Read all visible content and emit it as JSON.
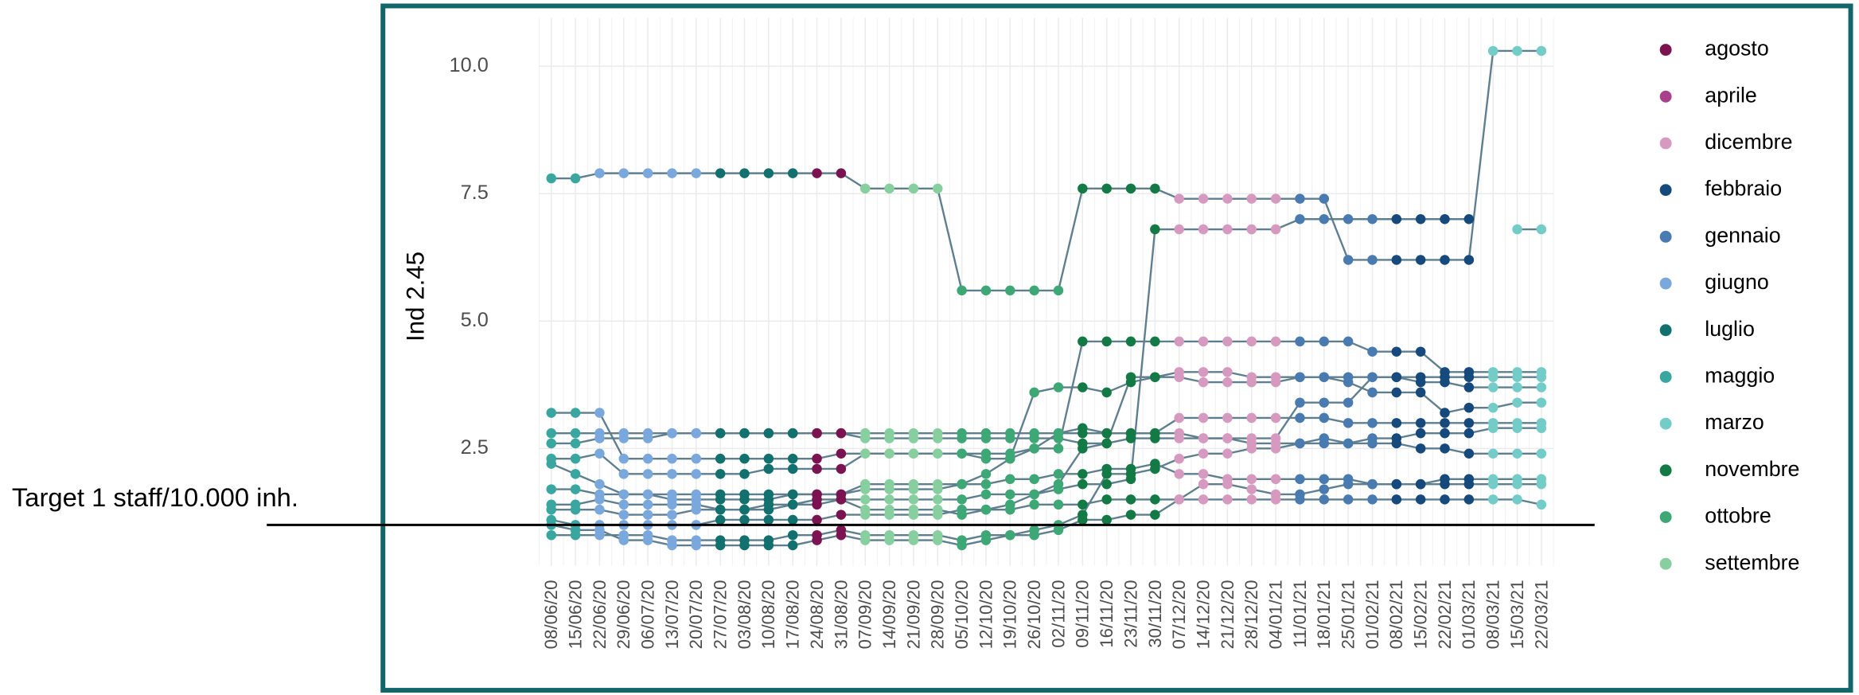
{
  "chart_data": {
    "type": "line",
    "y_label": "Ind 2.45",
    "ylim": [
      0.2,
      10.95
    ],
    "yticks": [
      2.5,
      {
        "value": 5.0,
        "label": "5.0"
      },
      7.5,
      {
        "value": 10.0,
        "label": "10.0"
      }
    ],
    "grid": true,
    "line_color": "#5f7f8f",
    "hline": {
      "value": 1.0,
      "label": "Target 1 staff/10.000 inh."
    },
    "x": [
      "08/06/20",
      "15/06/20",
      "22/06/20",
      "29/06/20",
      "06/07/20",
      "13/07/20",
      "20/07/20",
      "27/07/20",
      "03/08/20",
      "10/08/20",
      "17/08/20",
      "24/08/20",
      "31/08/20",
      "07/09/20",
      "14/09/20",
      "21/09/20",
      "28/09/20",
      "05/10/20",
      "12/10/20",
      "19/10/20",
      "26/10/20",
      "02/11/20",
      "09/11/20",
      "16/11/20",
      "23/11/20",
      "30/11/20",
      "07/12/20",
      "14/12/20",
      "21/12/20",
      "28/12/20",
      "04/01/21",
      "11/01/21",
      "18/01/21",
      "25/01/21",
      "01/02/21",
      "08/02/21",
      "15/02/21",
      "22/02/21",
      "01/03/21",
      "08/03/21",
      "15/03/21",
      "22/03/21"
    ],
    "legend": [
      {
        "name": "agosto",
        "color": "#7a1350"
      },
      {
        "name": "aprile",
        "color": "#a8418a"
      },
      {
        "name": "dicembre",
        "color": "#d69ac0"
      },
      {
        "name": "febbraio",
        "color": "#164a7c"
      },
      {
        "name": "gennaio",
        "color": "#4a7bb0"
      },
      {
        "name": "giugno",
        "color": "#7aa8dc"
      },
      {
        "name": "luglio",
        "color": "#12706e"
      },
      {
        "name": "maggio",
        "color": "#3aa6a0"
      },
      {
        "name": "marzo",
        "color": "#74ccc8"
      },
      {
        "name": "novembre",
        "color": "#137a45"
      },
      {
        "name": "ottobre",
        "color": "#3ea776"
      },
      {
        "name": "settembre",
        "color": "#88cfa0"
      }
    ],
    "x_month": [
      7,
      7,
      5,
      5,
      5,
      5,
      5,
      6,
      6,
      6,
      6,
      0,
      0,
      11,
      11,
      11,
      11,
      10,
      10,
      10,
      10,
      10,
      9,
      9,
      9,
      9,
      2,
      2,
      2,
      2,
      2,
      4,
      4,
      4,
      4,
      3,
      3,
      3,
      3,
      8,
      8,
      8
    ],
    "series": [
      {
        "values": [
          7.8,
          7.8,
          7.9,
          7.9,
          7.9,
          7.9,
          7.9,
          7.9,
          7.9,
          7.9,
          7.9,
          7.9,
          7.9,
          7.6,
          7.6,
          7.6,
          7.6,
          5.6,
          5.6,
          5.6,
          5.6,
          5.6,
          7.6,
          7.6,
          7.6,
          7.6,
          7.4,
          7.4,
          7.4,
          7.4,
          7.4,
          7.4,
          7.4,
          6.2,
          6.2,
          6.2,
          6.2,
          6.2,
          6.2,
          10.3,
          10.3,
          10.3
        ]
      },
      {
        "values": [
          1.3,
          1.3,
          1.3,
          1.2,
          1.2,
          1.2,
          1.3,
          1.3,
          1.3,
          1.3,
          1.4,
          1.4,
          1.5,
          1.5,
          1.5,
          1.5,
          1.5,
          1.5,
          1.6,
          1.6,
          1.6,
          1.7,
          1.8,
          1.8,
          1.9,
          6.8,
          6.8,
          6.8,
          6.8,
          6.8,
          6.8,
          7.0,
          7.0,
          7.0,
          7.0,
          7.0,
          7.0,
          7.0,
          7.0,
          null,
          6.8,
          6.8
        ]
      },
      {
        "values": [
          3.2,
          3.2,
          3.2,
          2.3,
          2.3,
          2.3,
          2.3,
          2.3,
          2.3,
          2.3,
          2.3,
          2.3,
          2.4,
          2.4,
          2.4,
          2.4,
          2.4,
          2.4,
          2.4,
          2.4,
          2.5,
          2.5,
          4.6,
          4.6,
          4.6,
          4.6,
          4.6,
          4.6,
          4.6,
          4.6,
          4.6,
          4.6,
          4.6,
          4.6,
          4.4,
          4.4,
          4.4,
          4.0,
          4.0,
          4.0,
          4.0,
          4.0
        ]
      },
      {
        "values": [
          2.8,
          2.8,
          2.8,
          2.8,
          2.8,
          2.8,
          2.8,
          2.8,
          2.8,
          2.8,
          2.8,
          2.8,
          2.8,
          2.8,
          2.8,
          2.8,
          2.8,
          2.8,
          2.8,
          2.8,
          2.8,
          2.8,
          2.8,
          2.8,
          2.8,
          2.8,
          3.1,
          3.1,
          3.1,
          3.1,
          3.1,
          3.1,
          3.1,
          3.0,
          3.0,
          3.0,
          3.0,
          3.0,
          3.0,
          3.0,
          3.0,
          3.0
        ]
      },
      {
        "values": [
          2.6,
          2.6,
          2.7,
          2.7,
          2.7,
          2.8,
          2.8,
          2.8,
          2.8,
          2.8,
          2.8,
          2.8,
          2.8,
          2.7,
          2.7,
          2.7,
          2.7,
          2.7,
          2.7,
          2.7,
          2.7,
          2.7,
          2.6,
          2.6,
          2.7,
          2.7,
          2.7,
          2.7,
          2.7,
          2.7,
          2.7,
          3.4,
          3.4,
          3.4,
          3.9,
          3.9,
          3.9,
          3.9,
          3.9,
          3.9,
          3.9,
          3.9
        ]
      },
      {
        "values": [
          1.7,
          1.7,
          1.6,
          1.6,
          1.6,
          1.5,
          1.5,
          1.5,
          1.5,
          1.5,
          1.6,
          1.6,
          1.6,
          1.8,
          1.8,
          1.8,
          1.8,
          1.8,
          1.8,
          1.9,
          1.9,
          2.0,
          2.0,
          2.1,
          2.1,
          2.2,
          2.0,
          2.0,
          1.9,
          1.9,
          1.9,
          1.9,
          1.9,
          1.9,
          1.8,
          1.8,
          1.8,
          1.9,
          1.9,
          1.9,
          1.9,
          1.9
        ]
      },
      {
        "values": [
          1.1,
          1.0,
          1.0,
          1.0,
          1.0,
          1.0,
          1.0,
          1.1,
          1.1,
          1.1,
          1.1,
          1.1,
          1.2,
          1.2,
          1.2,
          1.2,
          1.2,
          1.3,
          1.3,
          1.3,
          1.4,
          1.4,
          1.4,
          1.5,
          1.5,
          1.5,
          1.5,
          1.5,
          1.5,
          1.5,
          1.5,
          1.5,
          1.5,
          1.5,
          1.5,
          1.5,
          1.5,
          1.5,
          1.5,
          1.5,
          1.5,
          1.4
        ]
      },
      {
        "values": [
          0.8,
          0.8,
          0.8,
          0.8,
          0.8,
          0.7,
          0.7,
          0.7,
          0.7,
          0.7,
          0.8,
          0.8,
          0.9,
          0.8,
          0.8,
          0.8,
          0.8,
          0.7,
          0.8,
          0.8,
          0.9,
          1.0,
          1.2,
          2.0,
          2.0,
          2.1,
          2.3,
          2.4,
          2.4,
          2.5,
          2.5,
          2.6,
          2.6,
          2.6,
          2.7,
          2.7,
          2.8,
          2.8,
          2.8,
          2.9,
          2.9,
          2.9
        ]
      },
      {
        "values": [
          2.2,
          2.0,
          1.8,
          1.6,
          1.6,
          1.6,
          1.6,
          1.6,
          1.6,
          1.6,
          1.6,
          1.6,
          1.6,
          1.7,
          1.7,
          1.7,
          1.7,
          1.8,
          2.0,
          2.3,
          3.6,
          3.7,
          3.7,
          3.6,
          3.8,
          3.9,
          4.0,
          4.0,
          4.0,
          3.9,
          3.9,
          3.9,
          3.9,
          3.9,
          3.9,
          3.9,
          3.8,
          3.8,
          3.7,
          3.7,
          3.7,
          3.7
        ]
      },
      {
        "values": [
          1.0,
          0.9,
          0.9,
          0.7,
          0.7,
          0.6,
          0.6,
          0.6,
          0.6,
          0.6,
          0.6,
          0.7,
          0.8,
          0.7,
          0.7,
          0.7,
          0.7,
          0.6,
          0.7,
          0.8,
          0.8,
          0.9,
          1.1,
          1.1,
          1.2,
          1.2,
          1.5,
          1.8,
          1.8,
          1.7,
          1.6,
          1.6,
          1.7,
          1.8,
          1.8,
          1.8,
          1.8,
          1.8,
          1.8,
          1.8,
          1.8,
          1.8
        ]
      },
      {
        "values": [
          2.3,
          2.3,
          2.4,
          2.0,
          2.0,
          2.0,
          2.0,
          2.0,
          2.0,
          2.1,
          2.1,
          2.1,
          2.1,
          2.4,
          2.4,
          2.4,
          2.4,
          2.4,
          2.3,
          2.3,
          2.5,
          2.8,
          2.9,
          2.8,
          2.8,
          2.8,
          2.8,
          2.7,
          2.7,
          2.6,
          2.6,
          2.6,
          2.7,
          2.6,
          2.6,
          2.6,
          2.5,
          2.5,
          2.4,
          2.4,
          2.4,
          2.4
        ]
      },
      {
        "values": [
          1.4,
          1.4,
          1.5,
          1.4,
          1.4,
          1.4,
          1.4,
          1.3,
          1.3,
          1.4,
          1.4,
          1.5,
          1.5,
          1.3,
          1.3,
          1.3,
          1.3,
          1.2,
          1.3,
          1.4,
          1.6,
          1.8,
          2.5,
          2.6,
          3.9,
          3.9,
          3.9,
          3.8,
          3.8,
          3.8,
          3.8,
          3.9,
          3.9,
          3.8,
          3.6,
          3.6,
          3.6,
          3.2,
          3.3,
          3.3,
          3.4,
          3.4
        ]
      }
    ]
  }
}
